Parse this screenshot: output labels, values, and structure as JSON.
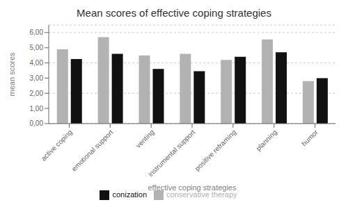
{
  "chart_data": {
    "type": "bar",
    "title": "Mean scores of effective coping strategies",
    "x_label": "effective coping strategies",
    "y_label": "mean scores",
    "categories": [
      "active coping",
      "emotional support",
      "venting",
      "instrumental support",
      "positive reframing",
      "planning",
      "humor"
    ],
    "series": [
      {
        "name": "conservative therapy",
        "color": "#b2b2b2",
        "values": [
          4.9,
          5.7,
          4.5,
          4.6,
          4.2,
          5.55,
          2.8
        ]
      },
      {
        "name": "conization",
        "color": "#111111",
        "values": [
          4.25,
          4.6,
          3.6,
          3.45,
          4.4,
          4.7,
          3.0
        ]
      }
    ],
    "ylim": [
      0,
      6.5
    ],
    "yticks": [
      {
        "value": 0.0,
        "label": "0,00"
      },
      {
        "value": 1.0,
        "label": "1,00"
      },
      {
        "value": 2.0,
        "label": "2,00"
      },
      {
        "value": 3.0,
        "label": "3,00"
      },
      {
        "value": 4.0,
        "label": "4,00"
      },
      {
        "value": 5.0,
        "label": "5,00"
      },
      {
        "value": 6.0,
        "label": "6,00"
      }
    ],
    "grid": true,
    "legend": "bottom"
  }
}
